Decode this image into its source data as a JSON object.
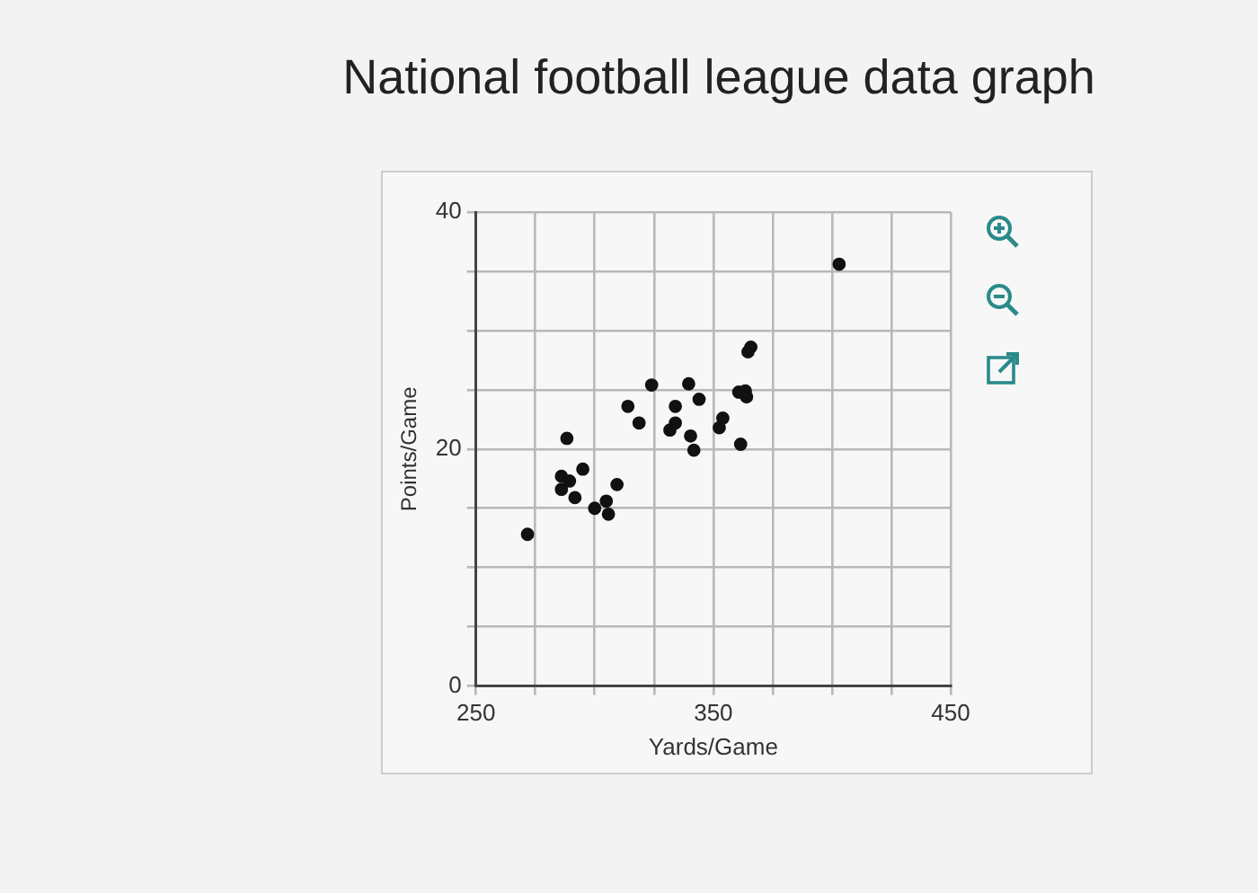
{
  "chart_data": {
    "type": "scatter",
    "title": "National football league data graph",
    "xlabel": "Yards/Game",
    "ylabel": "Points/Game",
    "xlim": [
      250,
      450
    ],
    "ylim": [
      0,
      40
    ],
    "xticks": [
      250,
      {
        "value": 275,
        "label": null
      },
      {
        "value": 300,
        "label": null
      },
      {
        "value": 325,
        "label": null
      },
      350,
      {
        "value": 375,
        "label": null
      },
      {
        "value": 400,
        "label": null
      },
      {
        "value": 425,
        "label": null
      },
      450
    ],
    "yticks": [
      0,
      {
        "value": 5,
        "label": null
      },
      {
        "value": 10,
        "label": null
      },
      {
        "value": 15,
        "label": null
      },
      20,
      {
        "value": 25,
        "label": null
      },
      {
        "value": 30,
        "label": null
      },
      {
        "value": 35,
        "label": null
      },
      40
    ],
    "grid": true,
    "legend": false,
    "marker": "circle",
    "series": [
      {
        "color": "#111111",
        "x": [
          403,
          271.7,
          288.3,
          286,
          289.4,
          286,
          295,
          291.7,
          300,
          304.9,
          305.8,
          309.4,
          314,
          318.7,
          324,
          334,
          331.7,
          334,
          339.6,
          344,
          340.4,
          341.8,
          352.5,
          354,
          360.7,
          363.5,
          364,
          361.5,
          364.6,
          365.8
        ],
        "values": [
          35.6,
          12.8,
          20.9,
          17.7,
          17.3,
          16.6,
          18.3,
          15.9,
          15,
          15.6,
          14.5,
          17,
          23.6,
          22.2,
          25.4,
          23.6,
          21.6,
          22.2,
          25.5,
          24.2,
          21.1,
          19.9,
          21.8,
          22.6,
          24.8,
          24.9,
          24.4,
          20.4,
          28.2,
          28.6
        ]
      }
    ]
  }
}
